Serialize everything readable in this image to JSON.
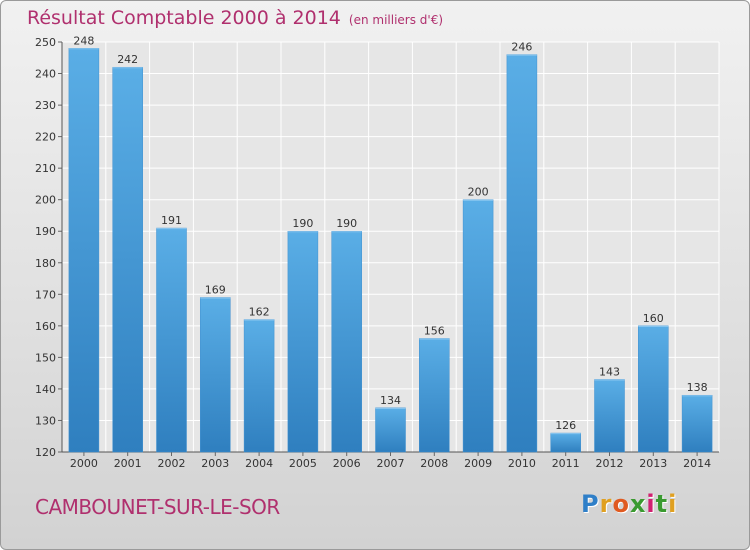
{
  "chart_data": {
    "type": "bar",
    "title": "Résultat Comptable 2000 à 2014",
    "subtitle": "(en milliers d'€)",
    "categories": [
      "2000",
      "2001",
      "2002",
      "2003",
      "2004",
      "2005",
      "2006",
      "2007",
      "2008",
      "2009",
      "2010",
      "2011",
      "2012",
      "2013",
      "2014"
    ],
    "values": [
      248,
      242,
      191,
      169,
      162,
      190,
      190,
      134,
      156,
      200,
      246,
      126,
      143,
      160,
      138
    ],
    "ylim": [
      120,
      250
    ],
    "yticks": [
      120,
      130,
      140,
      150,
      160,
      170,
      180,
      190,
      200,
      210,
      220,
      230,
      240,
      250
    ],
    "grid": true,
    "bar_color": "#4da0dc"
  },
  "footer": {
    "commune": "CAMBOUNET-SUR-LE-SOR",
    "logo": [
      "P",
      "r",
      "o",
      "x",
      "i",
      "t",
      "i"
    ],
    "logo_colors": [
      "#2f7fc8",
      "#e0a020",
      "#e05a20",
      "#3a9a30",
      "#d02070",
      "#3a9a30",
      "#e0a020"
    ]
  }
}
